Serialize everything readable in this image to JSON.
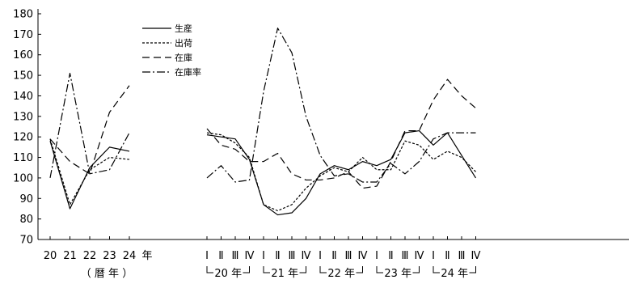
{
  "chart_data": {
    "type": "line",
    "ylim": [
      70,
      180
    ],
    "yticks": [
      70,
      80,
      90,
      100,
      110,
      120,
      130,
      140,
      150,
      160,
      170,
      180
    ],
    "annual": {
      "x": [
        "20",
        "21",
        "22",
        "23",
        "24"
      ],
      "unit_label": "年",
      "group_label": "（ 暦 年 ）"
    },
    "quarterly": {
      "quarters": [
        "Ⅰ",
        "Ⅱ",
        "Ⅲ",
        "Ⅳ"
      ],
      "years": [
        {
          "label": "20 年"
        },
        {
          "label": "21 年"
        },
        {
          "label": "22 年"
        },
        {
          "label": "23 年"
        },
        {
          "label": "24 年"
        }
      ]
    },
    "series": [
      {
        "name": "生産",
        "dash": "",
        "annual": [
          118,
          85,
          105,
          115,
          113
        ],
        "quarterly": [
          121,
          120,
          119,
          109,
          87,
          82,
          83,
          90,
          102,
          106,
          104,
          108,
          106,
          109,
          122,
          123,
          116,
          122,
          111,
          100
        ]
      },
      {
        "name": "出荷",
        "dash": "3,2",
        "annual": [
          119,
          87,
          104,
          110,
          109
        ],
        "quarterly": [
          122,
          121,
          117,
          110,
          87,
          84,
          87,
          95,
          101,
          105,
          103,
          110,
          104,
          104,
          118,
          116,
          109,
          113,
          110,
          103
        ]
      },
      {
        "name": "在庫",
        "dash": "9,5",
        "annual": [
          119,
          108,
          102,
          132,
          145
        ],
        "quarterly": [
          124,
          116,
          114,
          108,
          108,
          112,
          102,
          99,
          99,
          100,
          103,
          95,
          96,
          108,
          123,
          123,
          138,
          148,
          140,
          134
        ]
      },
      {
        "name": "在庫率",
        "dash": "10,3,2,3",
        "annual": [
          100,
          151,
          102,
          104,
          122
        ],
        "quarterly": [
          100,
          106,
          98,
          99,
          142,
          173,
          161,
          130,
          111,
          101,
          102,
          98,
          98,
          107,
          102,
          108,
          119,
          122,
          122,
          122
        ]
      }
    ]
  }
}
